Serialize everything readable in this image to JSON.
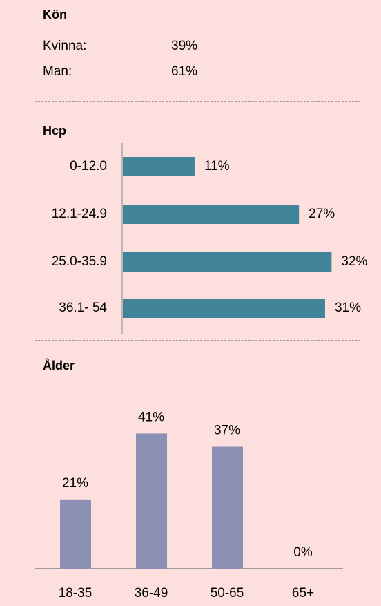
{
  "gender": {
    "title": "Kön",
    "rows": [
      [
        "Kvinna:",
        "39%"
      ],
      [
        "Man:",
        "61%"
      ]
    ]
  },
  "chart_data": [
    {
      "type": "hbar",
      "title": "Hcp",
      "categories": [
        "0-12.0",
        "12.1-24.9",
        "25.0-35.9",
        "36.1- 54"
      ],
      "values": [
        11,
        27,
        32,
        31
      ],
      "value_labels": [
        "11%",
        "27%",
        "32%",
        "31%"
      ],
      "color": "#41849a"
    },
    {
      "type": "bar",
      "title": "Ålder",
      "categories": [
        "18-35",
        "36-49",
        "50-65",
        "65+"
      ],
      "values": [
        21,
        41,
        37,
        0
      ],
      "value_labels": [
        "21%",
        "41%",
        "37%",
        "0%"
      ],
      "color": "#8b90b5"
    }
  ]
}
